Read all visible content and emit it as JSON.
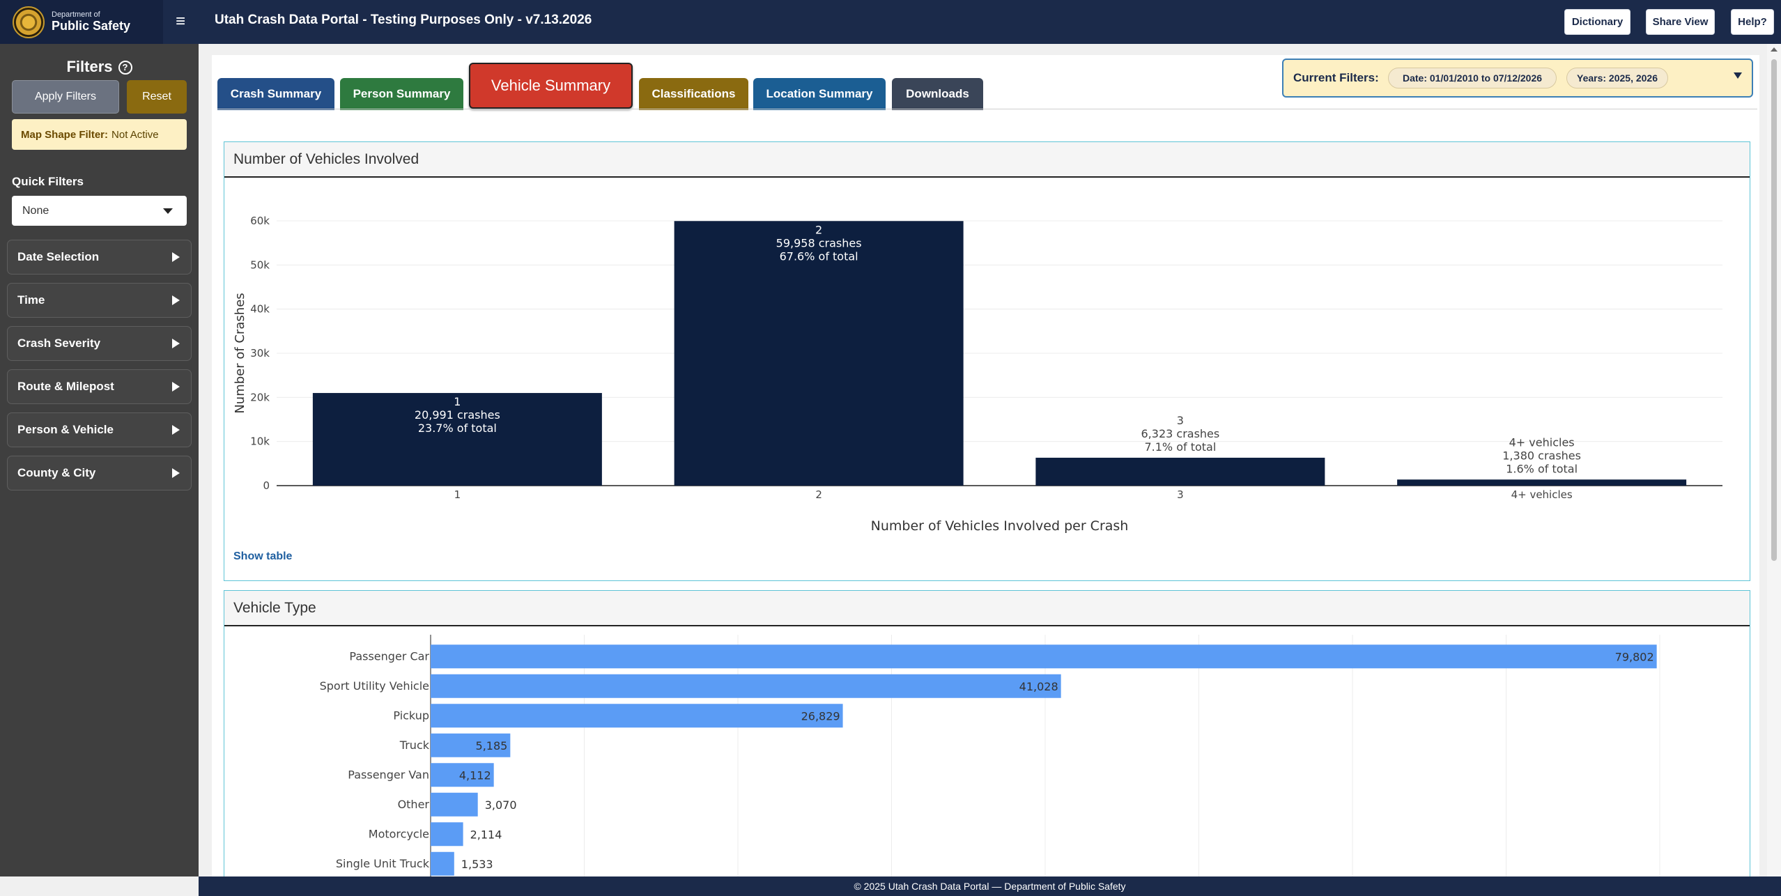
{
  "header": {
    "logo_small": "Department of",
    "logo_big": "Public Safety",
    "title": "Utah Crash Data Portal - Testing Purposes Only - v7.13.2026",
    "buttons": {
      "dictionary": "Dictionary",
      "share": "Share View",
      "help": "Help?"
    }
  },
  "sidebar": {
    "title": "Filters",
    "apply": "Apply Filters",
    "reset": "Reset",
    "map_shape_label": "Map Shape Filter:",
    "map_shape_value": "Not Active",
    "quick_filters_label": "Quick Filters",
    "quick_filters_value": "None",
    "sections": [
      "Date Selection",
      "Time",
      "Crash Severity",
      "Route & Milepost",
      "Person & Vehicle",
      "County & City"
    ]
  },
  "tabs": [
    {
      "label": "Crash Summary",
      "color": "#244f88"
    },
    {
      "label": "Person Summary",
      "color": "#2e7a3f"
    },
    {
      "label": "Vehicle Summary",
      "color": "#d0392b",
      "active": true
    },
    {
      "label": "Classifications",
      "color": "#8a6a10"
    },
    {
      "label": "Location Summary",
      "color": "#1b5e93"
    },
    {
      "label": "Downloads",
      "color": "#3a4558"
    }
  ],
  "current_filters": {
    "label": "Current Filters:",
    "date": "Date: 01/01/2010 to 07/12/2026",
    "years": "Years: 2025, 2026"
  },
  "vehicles_card": {
    "title": "Number of Vehicles Involved",
    "show_table": "Show table"
  },
  "vehicle_type_card": {
    "title": "Vehicle Type"
  },
  "chart_data": [
    {
      "type": "bar",
      "title": "Number of Vehicles Involved",
      "xlabel": "Number of Vehicles Involved per Crash",
      "ylabel": "Number of Crashes",
      "categories": [
        "1",
        "2",
        "3",
        "4+ vehicles"
      ],
      "values": [
        20991,
        59958,
        6323,
        1380
      ],
      "labels": [
        [
          "1",
          "20,991 crashes",
          "23.7% of total"
        ],
        [
          "2",
          "59,958 crashes",
          "67.6% of total"
        ],
        [
          "3",
          "6,323 crashes",
          "7.1% of total"
        ],
        [
          "4+ vehicles",
          "1,380 crashes",
          "1.6% of total"
        ]
      ],
      "ylim": [
        0,
        60000
      ],
      "yticks": [
        0,
        10000,
        20000,
        30000,
        40000,
        50000,
        60000
      ],
      "ytick_labels": [
        "0",
        "10k",
        "20k",
        "30k",
        "40k",
        "50k",
        "60k"
      ],
      "bar_color": "#0d1f3f",
      "grid": true
    },
    {
      "type": "bar",
      "orientation": "horizontal",
      "title": "Vehicle Type",
      "categories": [
        "Passenger Car",
        "Sport Utility Vehicle",
        "Pickup",
        "Truck",
        "Passenger Van",
        "Other",
        "Motorcycle",
        "Single Unit Truck"
      ],
      "values": [
        79802,
        41028,
        26829,
        5185,
        4112,
        3070,
        2114,
        1533
      ],
      "value_labels": [
        "79,802",
        "41,028",
        "26,829",
        "5,185",
        "4,112",
        "3,070",
        "2,114",
        "1,533"
      ],
      "xlim": [
        0,
        80000
      ],
      "bar_color": "#5b9cf5",
      "grid": true
    }
  ],
  "footer": "© 2025 Utah Crash Data Portal — Department of Public Safety"
}
